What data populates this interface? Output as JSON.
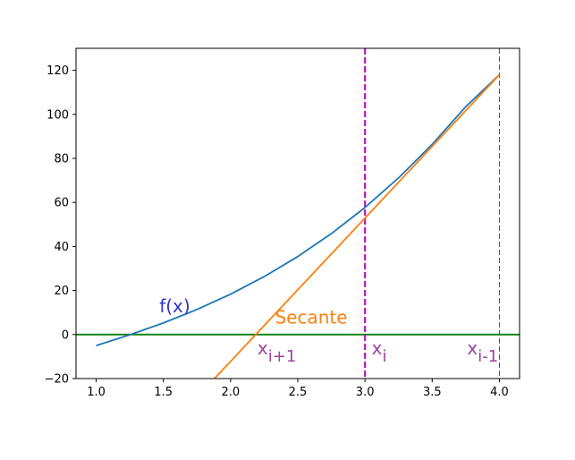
{
  "chart_data": {
    "type": "line",
    "title": "",
    "xlabel": "",
    "ylabel": "",
    "xlim": [
      0.85,
      4.15
    ],
    "ylim": [
      -20,
      130
    ],
    "x_ticks": [
      1.0,
      1.5,
      2.0,
      2.5,
      3.0,
      3.5,
      4.0
    ],
    "x_tick_labels": [
      "1.0",
      "1.5",
      "2.0",
      "2.5",
      "3.0",
      "3.5",
      "4.0"
    ],
    "y_ticks": [
      -20,
      0,
      20,
      40,
      60,
      80,
      100,
      120
    ],
    "y_tick_labels": [
      "−20",
      "0",
      "20",
      "40",
      "60",
      "80",
      "100",
      "120"
    ],
    "grid": false,
    "series": [
      {
        "name": "f(x)",
        "color": "#1f77b4",
        "x": [
          1.0,
          1.25,
          1.5,
          1.75,
          2.0,
          2.25,
          2.5,
          2.75,
          3.0,
          3.25,
          3.5,
          3.75,
          4.0
        ],
        "y": [
          -5.0,
          -0.14,
          5.25,
          11.36,
          18.33,
          26.3,
          35.42,
          45.84,
          57.7,
          71.16,
          86.38,
          103.5,
          118.0
        ]
      },
      {
        "name": "Secante",
        "color": "#ff7f0e",
        "x": [
          1.88,
          4.0
        ],
        "y": [
          -20.0,
          118.0
        ]
      }
    ],
    "reference_lines": [
      {
        "orientation": "horizontal",
        "value": 0,
        "color": "#008000",
        "style": "solid"
      },
      {
        "orientation": "vertical",
        "value": 3.0,
        "color": "#bf00bf",
        "style": "dashed"
      },
      {
        "orientation": "vertical",
        "value": 4.0,
        "color": "#bf00bf",
        "style": "dashed-thin"
      }
    ],
    "annotations": [
      {
        "text": "f(x)",
        "x": 1.47,
        "y": 10,
        "color": "#3333cc"
      },
      {
        "text": "Secante",
        "x": 2.33,
        "y": 5,
        "color": "#ff7f0e"
      },
      {
        "base": "x",
        "sub": "i+1",
        "x": 2.2,
        "y": -9,
        "color": "#a040a0"
      },
      {
        "base": "x",
        "sub": "i",
        "x": 3.05,
        "y": -9,
        "color": "#a040a0"
      },
      {
        "base": "x",
        "sub": "i-1",
        "x": 3.76,
        "y": -9,
        "color": "#a040a0"
      }
    ]
  }
}
